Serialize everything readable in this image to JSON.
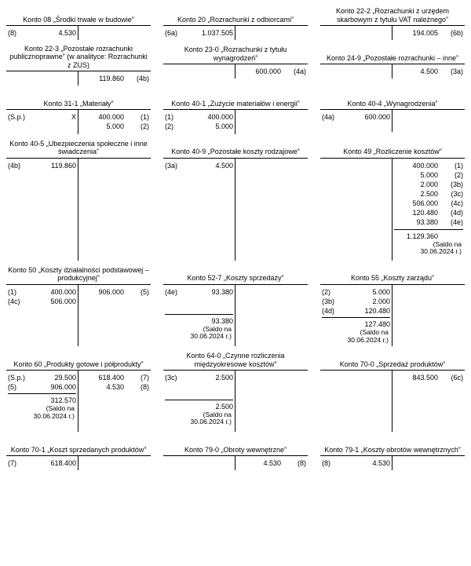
{
  "saldo_label": "(Saldo na",
  "saldo_date": "30.06.2024 r.)",
  "accounts": [
    {
      "title": "Konto 08 „Środki trwałe w budowie”",
      "dr": [
        {
          "ref": "(8)",
          "amt": "4.530"
        }
      ],
      "cr": [],
      "minH": 18
    },
    {
      "title": "Konto 20 „Rozrachunki z odbiorcami”",
      "dr": [
        {
          "ref": "(6a)",
          "amt": "1.037.505"
        }
      ],
      "cr": [],
      "minH": 18
    },
    {
      "title": "Konto 22-2 „Rozrachunki z urzędem skarbowym z tytułu VAT należnego”",
      "dr": [],
      "cr": [
        {
          "amt": "194.005",
          "ref": "(6b)"
        }
      ],
      "minH": 18
    },
    {
      "title": "Konto 22-3 „Pozostałe rozrachunki publicznoprawne” (w analityce: Rozrachunki z ZUS)",
      "dr": [],
      "cr": [
        {
          "amt": "119.860",
          "ref": "(4b)"
        }
      ],
      "minH": 18
    },
    {
      "title": "Konto 23-0 „Rozrachunki z tytułu wynagrodzeń”",
      "dr": [],
      "cr": [
        {
          "amt": "600.000",
          "ref": "(4a)"
        }
      ],
      "minH": 18
    },
    {
      "title": "Konto 24-9 „Pozostałe rozrachunki – inne”",
      "dr": [],
      "cr": [
        {
          "amt": "4.500",
          "ref": "(3a)"
        }
      ],
      "minH": 18
    },
    {
      "title": "Konto 31-1 „Materiały”",
      "dr": [
        {
          "ref": "(S.p.)",
          "amt": "X"
        }
      ],
      "cr": [
        {
          "amt": "400.000",
          "ref": "(1)"
        },
        {
          "amt": "5.000",
          "ref": "(2)"
        }
      ],
      "minH": 28
    },
    {
      "title": "Konto 40-1 „Zużycie materiałów i energii”",
      "dr": [
        {
          "ref": "(1)",
          "amt": "400.000"
        },
        {
          "ref": "(2)",
          "amt": "5.000"
        }
      ],
      "cr": [],
      "minH": 28
    },
    {
      "title": "Konto 40-4 „Wynagrodzenia”",
      "dr": [
        {
          "ref": "(4a)",
          "amt": "600.000"
        }
      ],
      "cr": [],
      "minH": 28
    },
    {
      "title": "Konto 40-5 „Ubezpieczenia społeczne i inne świadczenia”",
      "dr": [
        {
          "ref": "(4b)",
          "amt": "119.860"
        }
      ],
      "cr": [],
      "minH": 130
    },
    {
      "title": "Konto 40-9 „Pozostałe koszty rodzajowe”",
      "dr": [
        {
          "ref": "(3a)",
          "amt": "4.500"
        }
      ],
      "cr": [],
      "minH": 130
    },
    {
      "title": "Konto 49 „Rozliczenie kosztów”",
      "dr": [],
      "cr": [
        {
          "amt": "400.000",
          "ref": "(1)"
        },
        {
          "amt": "5.000",
          "ref": "(2)"
        },
        {
          "amt": "2.000",
          "ref": "(3b)"
        },
        {
          "amt": "2.500",
          "ref": "(3c)"
        },
        {
          "amt": "506.000",
          "ref": "(4c)"
        },
        {
          "amt": "120.480",
          "ref": "(4d)"
        },
        {
          "amt": "93.380",
          "ref": "(4e)"
        }
      ],
      "cr_sum": {
        "amt": "1.129.360",
        "saldo": true
      },
      "minH": 130
    },
    {
      "title": "Konto 50 „Koszty działalności podstawowej – produkcyjnej”",
      "dr": [
        {
          "ref": "(1)",
          "amt": "400.000"
        },
        {
          "ref": "(4c)",
          "amt": "506.000"
        }
      ],
      "cr": [
        {
          "amt": "906.000",
          "ref": "(5)"
        }
      ],
      "minH": 78
    },
    {
      "title": "Konto 52-7 „Koszty sprzedaży”",
      "dr": [
        {
          "ref": "(4e)",
          "amt": "93.380"
        }
      ],
      "cr": [],
      "dr_sum": {
        "amt": "93.380",
        "saldo": true
      },
      "minH": 78,
      "sumPad": 20
    },
    {
      "title": "Konto 55 „Koszty zarządu”",
      "dr": [
        {
          "ref": "(2)",
          "amt": "5.000"
        },
        {
          "ref": "(3b)",
          "amt": "2.000"
        },
        {
          "ref": "(4d)",
          "amt": "120.480"
        }
      ],
      "cr": [],
      "dr_sum": {
        "amt": "127.480",
        "saldo": true
      },
      "minH": 78
    },
    {
      "title": "Konto 60 „Produkty gotowe i półprodukty”",
      "dr": [
        {
          "ref": "(S.p.)",
          "amt": "29.500"
        },
        {
          "ref": "(5)",
          "amt": "906.000"
        }
      ],
      "cr": [
        {
          "amt": "618.400",
          "ref": "(7)"
        },
        {
          "amt": "4.530",
          "ref": "(8)"
        }
      ],
      "dr_sum": {
        "amt": "312.570",
        "saldo": true
      },
      "minH": 78
    },
    {
      "title": "Konto 64-0 „Czynne rozliczenia międzyokresowe kosztów”",
      "dr": [
        {
          "ref": "(3c)",
          "amt": "2.500"
        }
      ],
      "cr": [],
      "dr_sum": {
        "amt": "2.500",
        "saldo": true
      },
      "minH": 78,
      "sumPad": 20
    },
    {
      "title": "Konto 70-0 „Sprzedaż produktów”",
      "dr": [],
      "cr": [
        {
          "amt": "843.500",
          "ref": "(6c)"
        }
      ],
      "minH": 78
    },
    {
      "title": "Konto 70-1 „Koszt sprzedanych produktów”",
      "dr": [
        {
          "ref": "(7)",
          "amt": "618.400"
        }
      ],
      "cr": [],
      "minH": 18
    },
    {
      "title": "Konto 79-0 „Obroty wewnętrzne”",
      "dr": [],
      "cr": [
        {
          "amt": "4.530",
          "ref": "(8)"
        }
      ],
      "minH": 18
    },
    {
      "title": "Konto 79-1 „Koszty obrotów wewnętrznych”",
      "dr": [
        {
          "ref": "(8)",
          "amt": "4.530"
        }
      ],
      "cr": [],
      "minH": 18
    }
  ]
}
